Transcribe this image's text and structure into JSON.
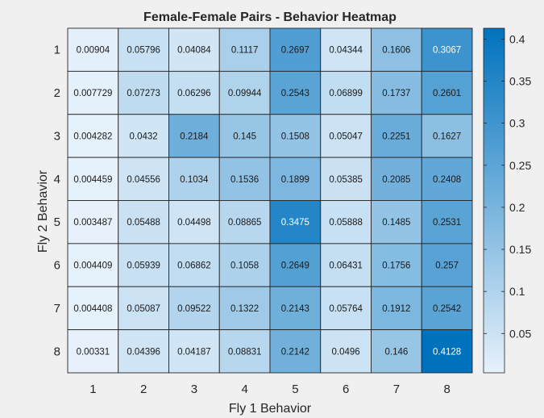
{
  "chart_data": {
    "type": "heatmap",
    "title": "Female-Female Pairs - Behavior Heatmap",
    "xlabel": "Fly 1 Behavior",
    "ylabel": "Fly 2 Behavior",
    "x_categories": [
      "1",
      "2",
      "3",
      "4",
      "5",
      "6",
      "7",
      "8"
    ],
    "y_categories": [
      "1",
      "2",
      "3",
      "4",
      "5",
      "6",
      "7",
      "8"
    ],
    "values": [
      [
        0.00904,
        0.05796,
        0.04084,
        0.1117,
        0.2697,
        0.04344,
        0.1606,
        0.3067
      ],
      [
        0.007729,
        0.07273,
        0.06296,
        0.09944,
        0.2543,
        0.06899,
        0.1737,
        0.2601
      ],
      [
        0.004282,
        0.0432,
        0.2184,
        0.145,
        0.1508,
        0.05047,
        0.2251,
        0.1627
      ],
      [
        0.004459,
        0.04556,
        0.1034,
        0.1536,
        0.1899,
        0.05385,
        0.2085,
        0.2408
      ],
      [
        0.003487,
        0.05488,
        0.04498,
        0.08865,
        0.3475,
        0.05888,
        0.1485,
        0.2531
      ],
      [
        0.004409,
        0.05939,
        0.06862,
        0.1058,
        0.2649,
        0.06431,
        0.1756,
        0.257
      ],
      [
        0.004408,
        0.05087,
        0.09522,
        0.1322,
        0.2143,
        0.05764,
        0.1912,
        0.2542
      ],
      [
        0.00331,
        0.04396,
        0.04187,
        0.08831,
        0.2142,
        0.0496,
        0.146,
        0.4128
      ]
    ],
    "cell_labels": [
      [
        "0.00904",
        "0.05796",
        "0.04084",
        "0.1117",
        "0.2697",
        "0.04344",
        "0.1606",
        "0.3067"
      ],
      [
        "0.007729",
        "0.07273",
        "0.06296",
        "0.09944",
        "0.2543",
        "0.06899",
        "0.1737",
        "0.2601"
      ],
      [
        "0.004282",
        "0.0432",
        "0.2184",
        "0.145",
        "0.1508",
        "0.05047",
        "0.2251",
        "0.1627"
      ],
      [
        "0.004459",
        "0.04556",
        "0.1034",
        "0.1536",
        "0.1899",
        "0.05385",
        "0.2085",
        "0.2408"
      ],
      [
        "0.003487",
        "0.05488",
        "0.04498",
        "0.08865",
        "0.3475",
        "0.05888",
        "0.1485",
        "0.2531"
      ],
      [
        "0.004409",
        "0.05939",
        "0.06862",
        "0.1058",
        "0.2649",
        "0.06431",
        "0.1756",
        "0.257"
      ],
      [
        "0.004408",
        "0.05087",
        "0.09522",
        "0.1322",
        "0.2143",
        "0.05764",
        "0.1912",
        "0.2542"
      ],
      [
        "0.00331",
        "0.04396",
        "0.04187",
        "0.08831",
        "0.2142",
        "0.0496",
        "0.146",
        "0.4128"
      ]
    ],
    "colorbar": {
      "range": [
        0.00331,
        0.4128
      ],
      "ticks": [
        0.05,
        0.1,
        0.15,
        0.2,
        0.25,
        0.3,
        0.35,
        0.4
      ],
      "tick_labels": [
        "0.05",
        "0.1",
        "0.15",
        "0.2",
        "0.25",
        "0.3",
        "0.35",
        "0.4"
      ],
      "placement": "right"
    },
    "colormap": {
      "low": "#e6f1fb",
      "high": "#0072bd"
    },
    "grid": false
  },
  "colors": {
    "background": "#f0f0f0",
    "text": "#262626",
    "cell_border": "#262626",
    "label_dark": "#1a1a1a",
    "label_light": "#ffffff"
  }
}
